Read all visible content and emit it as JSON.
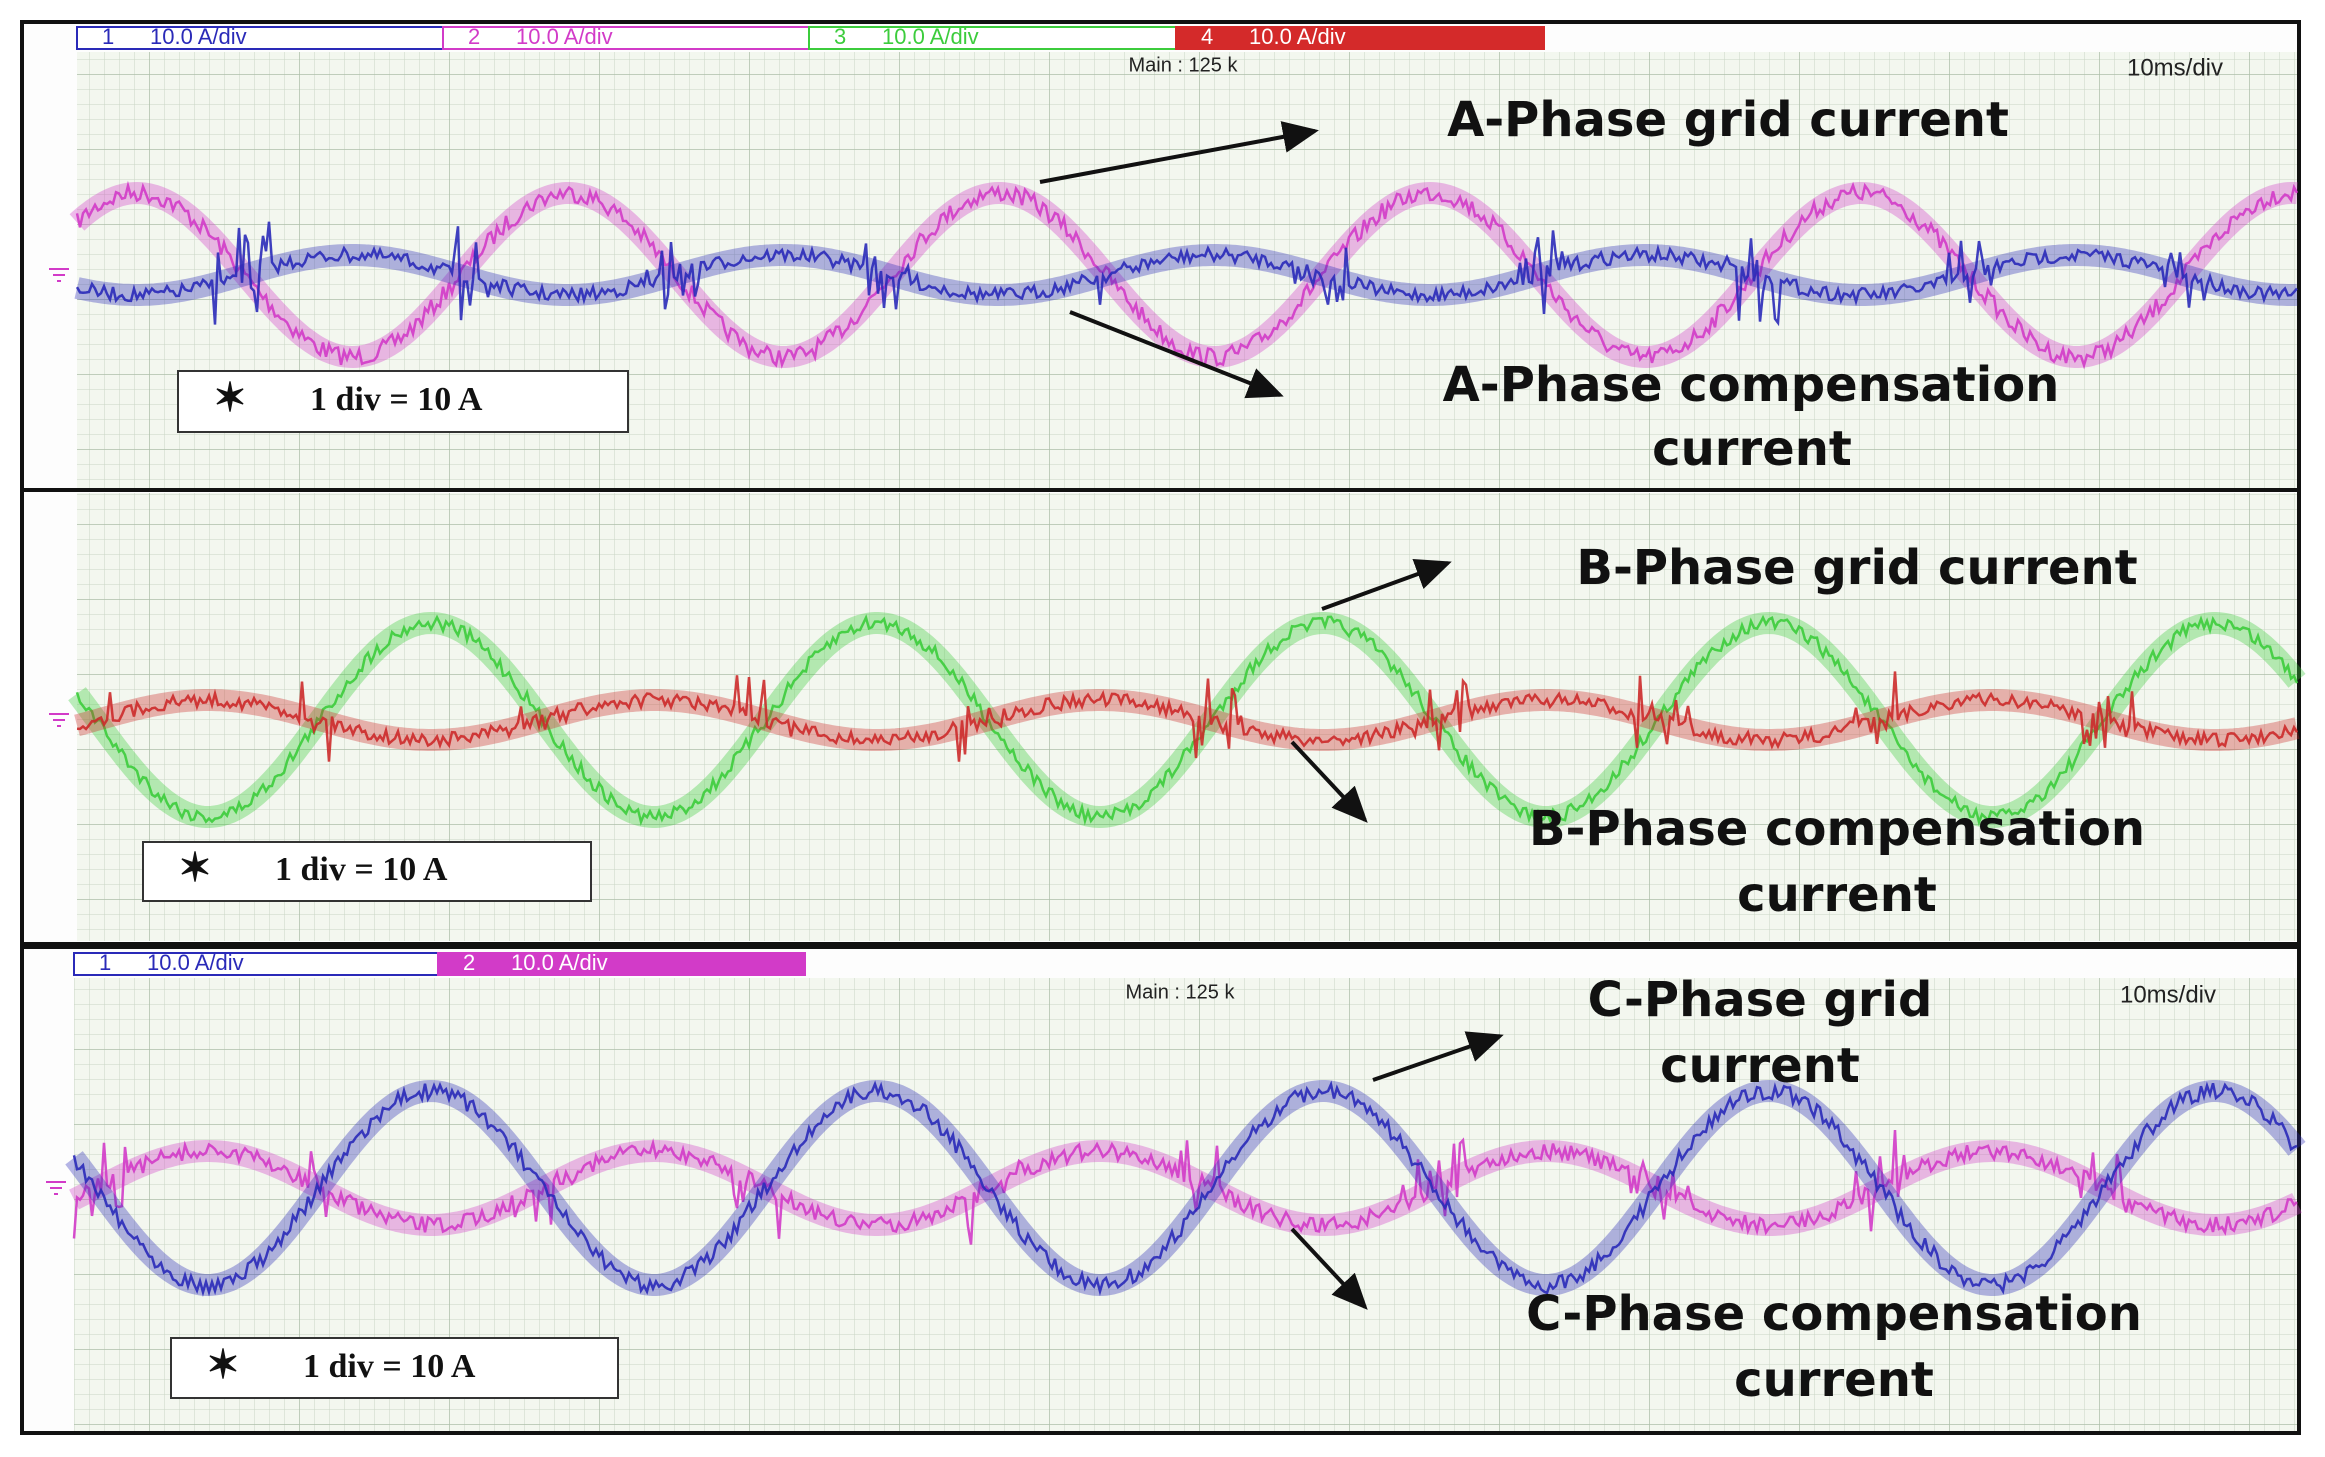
{
  "panels": [
    {
      "channels": [
        {
          "number": "1",
          "scale": "10.0 A/div"
        },
        {
          "number": "2",
          "scale": "10.0 A/div"
        },
        {
          "number": "3",
          "scale": "10.0 A/div"
        },
        {
          "number": "4",
          "scale": "10.0 A/div"
        }
      ],
      "timebase": "Main : 125 k",
      "time_scale": "10ms/div",
      "annotations": [
        "A-Phase grid current",
        "A-Phase compensation",
        "current"
      ],
      "scale_note": "1 div = 10 A"
    },
    {
      "annotations": [
        "B-Phase grid current",
        "B-Phase compensation",
        "current"
      ],
      "scale_note": "1 div = 10 A"
    },
    {
      "channels": [
        {
          "number": "1",
          "scale": "10.0 A/div"
        },
        {
          "number": "2",
          "scale": "10.0 A/div"
        }
      ],
      "timebase": "Main : 125 k",
      "time_scale": "10ms/div",
      "annotations": [
        "C-Phase grid",
        "current",
        "C-Phase compensation",
        "current"
      ],
      "scale_note": "1 div = 10 A"
    }
  ]
}
